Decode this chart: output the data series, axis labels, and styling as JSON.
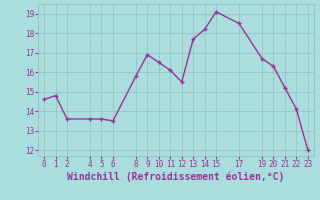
{
  "x": [
    0,
    1,
    2,
    4,
    5,
    6,
    8,
    9,
    10,
    11,
    12,
    13,
    14,
    15,
    17,
    19,
    20,
    21,
    22,
    23
  ],
  "y": [
    14.6,
    14.8,
    13.6,
    13.6,
    13.6,
    13.5,
    15.8,
    16.9,
    16.5,
    16.1,
    15.5,
    17.7,
    18.2,
    19.1,
    18.5,
    16.7,
    16.3,
    15.2,
    14.1,
    12.0
  ],
  "line_color": "#993399",
  "marker_color": "#993399",
  "bg_color": "#aadddd",
  "grid_color": "#99bbbb",
  "xlabel": "Windchill (Refroidissement éolien,°C)",
  "xlabel_color": "#993399",
  "ylim": [
    11.7,
    19.5
  ],
  "xlim": [
    -0.5,
    23.5
  ],
  "yticks": [
    12,
    13,
    14,
    15,
    16,
    17,
    18,
    19
  ],
  "xticks": [
    0,
    1,
    2,
    4,
    5,
    6,
    8,
    9,
    10,
    11,
    12,
    13,
    14,
    15,
    17,
    19,
    20,
    21,
    22,
    23
  ],
  "tick_color": "#993399",
  "tick_fontsize": 5.5,
  "xlabel_fontsize": 7.0,
  "linewidth": 1.0,
  "markersize": 3.5
}
